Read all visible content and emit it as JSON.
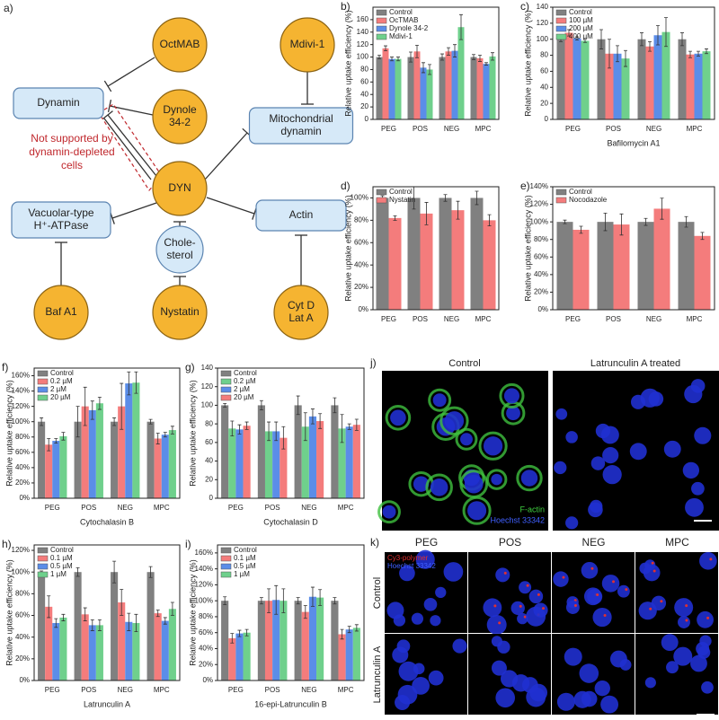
{
  "diagram": {
    "panel": "a)",
    "nodes": [
      {
        "label": [
          "Dynamin"
        ]
      },
      {
        "label": [
          "OctMAB"
        ]
      },
      {
        "label": [
          "Dynole",
          "34-2"
        ]
      },
      {
        "label": [
          "DYN"
        ]
      },
      {
        "label": [
          "Mdivi-1"
        ]
      },
      {
        "label": [
          "Mitochondrial",
          "dynamin"
        ]
      },
      {
        "label": [
          "Actin"
        ]
      },
      {
        "label": [
          "Vacuolar-type",
          "H⁺-ATPase"
        ]
      },
      {
        "label": [
          "Chole-",
          "sterol"
        ]
      },
      {
        "label": [
          "Baf A1"
        ]
      },
      {
        "label": [
          "Nystatin"
        ]
      },
      {
        "label": [
          "Cyt D",
          "Lat A"
        ]
      }
    ],
    "note": [
      "Not supported by",
      "dynamin-depleted",
      "cells"
    ]
  },
  "chart_data": [
    {
      "type": "bar",
      "panel": "b)",
      "ylabel": "Relative uptake efficiency (%)",
      "categories": [
        "PEG",
        "POS",
        "NEG",
        "MPC"
      ],
      "ylim": [
        0,
        180
      ],
      "yticks": [
        0,
        20,
        40,
        60,
        80,
        100,
        120,
        140,
        160
      ],
      "legend": "top-left",
      "series": [
        {
          "name": "Control",
          "color": "#808080",
          "values": [
            100,
            100,
            100,
            100
          ],
          "errors": [
            3,
            8,
            5,
            4
          ]
        },
        {
          "name": "OcTMAB",
          "color": "#f47c7c",
          "values": [
            114,
            109,
            109,
            98
          ],
          "errors": [
            4,
            10,
            6,
            5
          ]
        },
        {
          "name": "Dynole 34-2",
          "color": "#5b8de8",
          "values": [
            97,
            83,
            110,
            89
          ],
          "errors": [
            3,
            8,
            10,
            2
          ]
        },
        {
          "name": "Mdivi-1",
          "color": "#6fd08c",
          "values": [
            97,
            80,
            148,
            101
          ],
          "errors": [
            3,
            8,
            20,
            6
          ]
        }
      ]
    },
    {
      "type": "bar",
      "panel": "c)",
      "ylabel": "Relative uptake efficiency (%)",
      "xlabel": "Bafilomycin A1",
      "categories": [
        "PEG",
        "POS",
        "NEG",
        "MPC"
      ],
      "ylim": [
        0,
        140
      ],
      "yticks": [
        0,
        20,
        40,
        60,
        80,
        100,
        120,
        140
      ],
      "legend": "top-left",
      "series": [
        {
          "name": "Control",
          "color": "#808080",
          "values": [
            100,
            100,
            100,
            100
          ],
          "errors": [
            3,
            12,
            8,
            8
          ]
        },
        {
          "name": "100 µM",
          "color": "#f47c7c",
          "values": [
            108,
            82,
            91,
            81
          ],
          "errors": [
            4,
            18,
            6,
            4
          ]
        },
        {
          "name": "200 µM",
          "color": "#5b8de8",
          "values": [
            101,
            82,
            105,
            82
          ],
          "errors": [
            2,
            10,
            12,
            3
          ]
        },
        {
          "name": "400 µM",
          "color": "#6fd08c",
          "values": [
            98,
            76,
            109,
            85
          ],
          "errors": [
            2,
            10,
            18,
            3
          ]
        }
      ]
    },
    {
      "type": "bar",
      "panel": "d)",
      "ylabel": "Relative uptake efficiency (%)",
      "categories": [
        "PEG",
        "POS",
        "NEG",
        "MPC"
      ],
      "ylim": [
        0,
        110
      ],
      "yticks": [
        {
          "value": 0,
          "label": "0%"
        },
        {
          "value": 20,
          "label": "20%"
        },
        {
          "value": 40,
          "label": "40%"
        },
        {
          "value": 60,
          "label": "60%"
        },
        {
          "value": 80,
          "label": "80%"
        },
        {
          "value": 100,
          "label": "100%"
        }
      ],
      "legend": "top-left",
      "series": [
        {
          "name": "Control",
          "color": "#808080",
          "values": [
            100,
            100,
            100,
            100
          ],
          "errors": [
            2,
            10,
            3,
            6
          ]
        },
        {
          "name": "Nystatin",
          "color": "#f47c7c",
          "values": [
            82,
            86,
            89,
            80
          ],
          "errors": [
            2,
            10,
            8,
            5
          ]
        }
      ]
    },
    {
      "type": "bar",
      "panel": "e)",
      "ylabel": "Relative uptake efficiency (%)",
      "categories": [
        "PEG",
        "POS",
        "NEG",
        "MPC"
      ],
      "ylim": [
        0,
        140
      ],
      "yticks": [
        {
          "value": 0,
          "label": "0%"
        },
        {
          "value": 20,
          "label": "20%"
        },
        {
          "value": 40,
          "label": "40%"
        },
        {
          "value": 60,
          "label": "60%"
        },
        {
          "value": 80,
          "label": "80%"
        },
        {
          "value": 100,
          "label": "100%"
        },
        {
          "value": 120,
          "label": "120%"
        },
        {
          "value": 140,
          "label": "140%"
        }
      ],
      "legend": "top-left",
      "series": [
        {
          "name": "Control",
          "color": "#808080",
          "values": [
            100,
            100,
            100,
            100
          ],
          "errors": [
            2,
            10,
            4,
            6
          ]
        },
        {
          "name": "Nocodazole",
          "color": "#f47c7c",
          "values": [
            91,
            97,
            115,
            84
          ],
          "errors": [
            4,
            12,
            12,
            4
          ]
        }
      ]
    },
    {
      "type": "bar",
      "panel": "f)",
      "ylabel": "Relative uptake efficiency (%)",
      "xlabel": "Cytochalasin B",
      "categories": [
        "PEG",
        "POS",
        "NEG",
        "MPC"
      ],
      "ylim": [
        0,
        170
      ],
      "yticks": [
        {
          "value": 0,
          "label": "0%"
        },
        {
          "value": 20,
          "label": "20%"
        },
        {
          "value": 40,
          "label": "40%"
        },
        {
          "value": 60,
          "label": "60%"
        },
        {
          "value": 80,
          "label": "80%"
        },
        {
          "value": 100,
          "label": "100%"
        },
        {
          "value": 120,
          "label": "120%"
        },
        {
          "value": 140,
          "label": "140%"
        },
        {
          "value": 160,
          "label": "160%"
        }
      ],
      "legend": "top-left",
      "series": [
        {
          "name": "Control",
          "color": "#808080",
          "values": [
            100,
            100,
            100,
            100
          ],
          "errors": [
            5,
            20,
            5,
            3
          ]
        },
        {
          "name": "0.2 µM",
          "color": "#f47c7c",
          "values": [
            70,
            120,
            120,
            78
          ],
          "errors": [
            8,
            25,
            30,
            7
          ]
        },
        {
          "name": "2 µM",
          "color": "#5b8de8",
          "values": [
            75,
            115,
            150,
            83
          ],
          "errors": [
            3,
            12,
            15,
            3
          ]
        },
        {
          "name": "20 µM",
          "color": "#6fd08c",
          "values": [
            81,
            124,
            151,
            89
          ],
          "errors": [
            5,
            8,
            14,
            5
          ]
        }
      ]
    },
    {
      "type": "bar",
      "panel": "g)",
      "ylabel": "Relative uptake efficiency (%)",
      "xlabel": "Cytochalasin D",
      "categories": [
        "PEG",
        "POS",
        "NEG",
        "MPC"
      ],
      "ylim": [
        0,
        140
      ],
      "yticks": [
        0,
        20,
        40,
        60,
        80,
        100,
        120,
        140
      ],
      "legend": "top-left",
      "series": [
        {
          "name": "Control",
          "color": "#808080",
          "values": [
            100,
            100,
            100,
            100
          ],
          "errors": [
            2,
            5,
            10,
            8
          ]
        },
        {
          "name": "0.2 µM",
          "color": "#6fd08c",
          "values": [
            75,
            72,
            77,
            75
          ],
          "errors": [
            8,
            10,
            15,
            15
          ]
        },
        {
          "name": "2 µM",
          "color": "#5b8de8",
          "values": [
            74,
            72,
            88,
            77
          ],
          "errors": [
            5,
            10,
            8,
            3
          ]
        },
        {
          "name": "20 µM",
          "color": "#f47c7c",
          "values": [
            78,
            65,
            83,
            79
          ],
          "errors": [
            4,
            12,
            8,
            6
          ]
        }
      ]
    },
    {
      "type": "bar",
      "panel": "h)",
      "ylabel": "Relative uptake efficiency (%)",
      "xlabel": "Latrunculin A",
      "categories": [
        "PEG",
        "POS",
        "NEG",
        "MPC"
      ],
      "ylim": [
        0,
        125
      ],
      "yticks": [
        {
          "value": 0,
          "label": "0%"
        },
        {
          "value": 20,
          "label": "20%"
        },
        {
          "value": 40,
          "label": "40%"
        },
        {
          "value": 60,
          "label": "60%"
        },
        {
          "value": 80,
          "label": "80%"
        },
        {
          "value": 100,
          "label": "100%"
        },
        {
          "value": 120,
          "label": "120%"
        }
      ],
      "legend": "top-left",
      "series": [
        {
          "name": "Control",
          "color": "#808080",
          "values": [
            100,
            100,
            100,
            100
          ],
          "errors": [
            1,
            4,
            10,
            5
          ]
        },
        {
          "name": "0.1 µM",
          "color": "#f47c7c",
          "values": [
            68,
            61,
            72,
            62
          ],
          "errors": [
            10,
            6,
            12,
            3
          ]
        },
        {
          "name": "0.5 µM",
          "color": "#5b8de8",
          "values": [
            53,
            51,
            54,
            55
          ],
          "errors": [
            4,
            5,
            8,
            3
          ]
        },
        {
          "name": "1 µM",
          "color": "#6fd08c",
          "values": [
            58,
            51,
            53,
            66
          ],
          "errors": [
            3,
            5,
            8,
            6
          ]
        }
      ]
    },
    {
      "type": "bar",
      "panel": "i)",
      "ylabel": "Relative uptake efficiency (%)",
      "xlabel": "16-epi-Latrunculin B",
      "categories": [
        "PEG",
        "POS",
        "NEG",
        "MPC"
      ],
      "ylim": [
        0,
        170
      ],
      "yticks": [
        {
          "value": 0,
          "label": "0%"
        },
        {
          "value": 20,
          "label": "20%"
        },
        {
          "value": 40,
          "label": "40%"
        },
        {
          "value": 60,
          "label": "60%"
        },
        {
          "value": 80,
          "label": "80%"
        },
        {
          "value": 100,
          "label": "100%"
        },
        {
          "value": 120,
          "label": "120%"
        },
        {
          "value": 140,
          "label": "140%"
        },
        {
          "value": 160,
          "label": "160%"
        }
      ],
      "legend": "top-left",
      "series": [
        {
          "name": "Control",
          "color": "#808080",
          "values": [
            100,
            100,
            100,
            100
          ],
          "errors": [
            5,
            4,
            4,
            4
          ]
        },
        {
          "name": "0.1 µM",
          "color": "#f47c7c",
          "values": [
            53,
            100,
            86,
            58
          ],
          "errors": [
            6,
            15,
            8,
            6
          ]
        },
        {
          "name": "0.5 µM",
          "color": "#5b8de8",
          "values": [
            59,
            101,
            105,
            64
          ],
          "errors": [
            4,
            18,
            12,
            4
          ]
        },
        {
          "name": "1 µM",
          "color": "#6fd08c",
          "values": [
            60,
            100,
            104,
            66
          ],
          "errors": [
            4,
            15,
            10,
            4
          ]
        }
      ]
    }
  ],
  "images": {
    "j": {
      "panel": "j)",
      "titles": [
        "Control",
        "Latrunculin A treated"
      ],
      "stains": [
        "F-actin",
        "Hoechst 33342"
      ]
    },
    "k": {
      "panel": "k)",
      "columns": [
        "PEG",
        "POS",
        "NEG",
        "MPC"
      ],
      "rows": [
        "Control",
        "Latrunculin A"
      ],
      "stains": [
        "Cy3-polymer",
        "Hoechst 33342"
      ]
    }
  }
}
